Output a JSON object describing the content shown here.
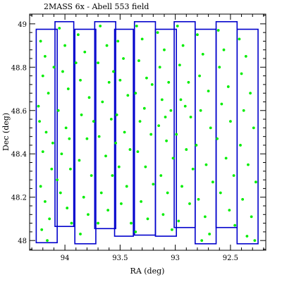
{
  "chart_data": {
    "type": "scatter",
    "title": "2MASS 6x - Abell 553 field",
    "xlabel": "RA (deg)",
    "ylabel": "Dec (deg)",
    "xlim": [
      94.32,
      92.18
    ],
    "ylim": [
      47.955,
      49.045
    ],
    "x_ticks": [
      94,
      93.5,
      93,
      92.5
    ],
    "x_tick_labels": [
      "94",
      "93.5",
      "93",
      "92.5"
    ],
    "y_ticks": [
      48,
      48.2,
      48.4,
      48.6,
      48.8,
      49
    ],
    "y_tick_labels": [
      "48",
      "48.2",
      "48.4",
      "48.6",
      "48.8",
      "49"
    ],
    "grid": false,
    "legend": "none",
    "colors": {
      "points": "#00ee00",
      "strips": "#0000cc"
    },
    "strips": [
      {
        "ra_min": 94.07,
        "ra_max": 94.26,
        "dec_min": 47.99,
        "dec_max": 48.975
      },
      {
        "ra_min": 93.92,
        "ra_max": 94.09,
        "dec_min": 48.065,
        "dec_max": 49.01
      },
      {
        "ra_min": 93.72,
        "ra_max": 93.91,
        "dec_min": 47.985,
        "dec_max": 48.975
      },
      {
        "ra_min": 93.54,
        "ra_max": 93.73,
        "dec_min": 48.055,
        "dec_max": 49.01
      },
      {
        "ra_min": 93.38,
        "ra_max": 93.55,
        "dec_min": 48.02,
        "dec_max": 48.975
      },
      {
        "ra_min": 93.18,
        "ra_max": 93.37,
        "dec_min": 48.025,
        "dec_max": 49.01
      },
      {
        "ra_min": 92.99,
        "ra_max": 93.18,
        "dec_min": 48.02,
        "dec_max": 48.975
      },
      {
        "ra_min": 92.82,
        "ra_max": 93.01,
        "dec_min": 48.06,
        "dec_max": 49.01
      },
      {
        "ra_min": 92.63,
        "ra_max": 92.82,
        "dec_min": 47.985,
        "dec_max": 48.975
      },
      {
        "ra_min": 92.44,
        "ra_max": 92.63,
        "dec_min": 48.06,
        "dec_max": 49.01
      },
      {
        "ra_min": 92.25,
        "ra_max": 92.44,
        "dec_min": 47.985,
        "dec_max": 48.975
      }
    ],
    "points": [
      [
        94.22,
        48.92
      ],
      [
        94.18,
        48.85
      ],
      [
        94.2,
        48.76
      ],
      [
        94.15,
        48.68
      ],
      [
        94.23,
        48.55
      ],
      [
        94.17,
        48.5
      ],
      [
        94.2,
        48.41
      ],
      [
        94.12,
        48.33
      ],
      [
        94.22,
        48.25
      ],
      [
        94.18,
        48.18
      ],
      [
        94.14,
        48.1
      ],
      [
        94.21,
        48.05
      ],
      [
        94.16,
        48.0
      ],
      [
        94.1,
        48.8
      ],
      [
        94.24,
        48.62
      ],
      [
        94.11,
        48.45
      ],
      [
        94.05,
        48.98
      ],
      [
        94.0,
        48.9
      ],
      [
        94.02,
        48.78
      ],
      [
        93.97,
        48.7
      ],
      [
        94.06,
        48.6
      ],
      [
        93.99,
        48.52
      ],
      [
        94.03,
        48.4
      ],
      [
        93.95,
        48.33
      ],
      [
        94.04,
        48.22
      ],
      [
        93.98,
        48.15
      ],
      [
        93.94,
        48.08
      ],
      [
        94.07,
        48.28
      ],
      [
        93.96,
        48.47
      ],
      [
        93.88,
        48.95
      ],
      [
        93.82,
        48.87
      ],
      [
        93.86,
        48.74
      ],
      [
        93.78,
        48.66
      ],
      [
        93.85,
        48.58
      ],
      [
        93.8,
        48.47
      ],
      [
        93.87,
        48.37
      ],
      [
        93.76,
        48.3
      ],
      [
        93.83,
        48.2
      ],
      [
        93.79,
        48.12
      ],
      [
        93.86,
        48.03
      ],
      [
        93.74,
        48.55
      ],
      [
        93.9,
        48.82
      ],
      [
        93.68,
        48.99
      ],
      [
        93.62,
        48.9
      ],
      [
        93.7,
        48.82
      ],
      [
        93.6,
        48.73
      ],
      [
        93.66,
        48.64
      ],
      [
        93.58,
        48.56
      ],
      [
        93.69,
        48.48
      ],
      [
        93.63,
        48.39
      ],
      [
        93.57,
        48.3
      ],
      [
        93.67,
        48.22
      ],
      [
        93.61,
        48.14
      ],
      [
        93.7,
        48.08
      ],
      [
        93.56,
        48.78
      ],
      [
        93.52,
        48.92
      ],
      [
        93.47,
        48.84
      ],
      [
        93.5,
        48.74
      ],
      [
        93.43,
        48.67
      ],
      [
        93.53,
        48.58
      ],
      [
        93.46,
        48.5
      ],
      [
        93.41,
        48.42
      ],
      [
        93.51,
        48.34
      ],
      [
        93.44,
        48.25
      ],
      [
        93.49,
        48.17
      ],
      [
        93.4,
        48.08
      ],
      [
        93.54,
        48.45
      ],
      [
        93.35,
        48.99
      ],
      [
        93.3,
        48.93
      ],
      [
        93.33,
        48.83
      ],
      [
        93.26,
        48.75
      ],
      [
        93.36,
        48.68
      ],
      [
        93.28,
        48.61
      ],
      [
        93.32,
        48.55
      ],
      [
        93.22,
        48.49
      ],
      [
        93.34,
        48.41
      ],
      [
        93.27,
        48.34
      ],
      [
        93.2,
        48.26
      ],
      [
        93.31,
        48.18
      ],
      [
        93.25,
        48.1
      ],
      [
        93.36,
        48.04
      ],
      [
        93.21,
        48.72
      ],
      [
        93.16,
        48.96
      ],
      [
        93.1,
        48.88
      ],
      [
        93.14,
        48.8
      ],
      [
        93.06,
        48.73
      ],
      [
        93.12,
        48.65
      ],
      [
        93.04,
        48.6
      ],
      [
        93.15,
        48.53
      ],
      [
        93.08,
        48.46
      ],
      [
        93.02,
        48.38
      ],
      [
        93.13,
        48.3
      ],
      [
        93.07,
        48.22
      ],
      [
        93.11,
        48.12
      ],
      [
        93.03,
        48.05
      ],
      [
        93.09,
        48.57
      ],
      [
        92.98,
        48.99
      ],
      [
        92.93,
        48.9
      ],
      [
        92.96,
        48.81
      ],
      [
        92.88,
        48.73
      ],
      [
        92.95,
        48.65
      ],
      [
        92.86,
        48.57
      ],
      [
        92.99,
        48.49
      ],
      [
        92.9,
        48.42
      ],
      [
        92.84,
        48.33
      ],
      [
        92.94,
        48.25
      ],
      [
        92.87,
        48.17
      ],
      [
        92.97,
        48.09
      ],
      [
        92.91,
        48.62
      ],
      [
        92.8,
        48.95
      ],
      [
        92.75,
        48.86
      ],
      [
        92.78,
        48.76
      ],
      [
        92.7,
        48.69
      ],
      [
        92.77,
        48.6
      ],
      [
        92.68,
        48.52
      ],
      [
        92.81,
        48.44
      ],
      [
        92.72,
        48.35
      ],
      [
        92.66,
        48.27
      ],
      [
        92.79,
        48.19
      ],
      [
        92.73,
        48.11
      ],
      [
        92.69,
        48.03
      ],
      [
        92.76,
        48.0
      ],
      [
        92.61,
        48.97
      ],
      [
        92.56,
        48.88
      ],
      [
        92.6,
        48.8
      ],
      [
        92.52,
        48.71
      ],
      [
        92.58,
        48.63
      ],
      [
        92.5,
        48.55
      ],
      [
        92.62,
        48.47
      ],
      [
        92.54,
        48.38
      ],
      [
        92.47,
        48.3
      ],
      [
        92.59,
        48.22
      ],
      [
        92.51,
        48.14
      ],
      [
        92.46,
        48.07
      ],
      [
        92.42,
        48.93
      ],
      [
        92.36,
        48.85
      ],
      [
        92.4,
        48.77
      ],
      [
        92.32,
        48.68
      ],
      [
        92.38,
        48.6
      ],
      [
        92.29,
        48.52
      ],
      [
        92.41,
        48.44
      ],
      [
        92.34,
        48.35
      ],
      [
        92.27,
        48.27
      ],
      [
        92.39,
        48.19
      ],
      [
        92.31,
        48.11
      ],
      [
        92.35,
        48.02
      ],
      [
        92.28,
        48.0
      ]
    ]
  }
}
